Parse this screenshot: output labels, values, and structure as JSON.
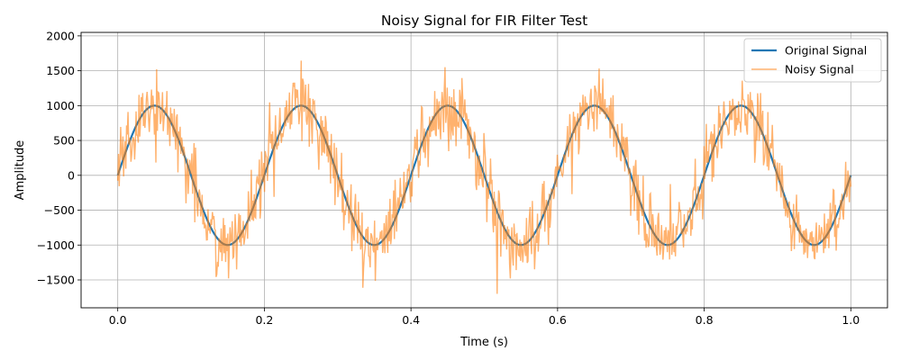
{
  "chart_data": {
    "type": "line",
    "title": "Noisy Signal for FIR Filter Test",
    "xlabel": "Time (s)",
    "ylabel": "Amplitude",
    "xlim": [
      -0.05,
      1.05
    ],
    "ylim": [
      -1900,
      2050
    ],
    "x_ticks": [
      0.0,
      0.2,
      0.4,
      0.6,
      0.8,
      1.0
    ],
    "x_tick_labels": [
      "0.0",
      "0.2",
      "0.4",
      "0.6",
      "0.8",
      "1.0"
    ],
    "y_ticks": [
      -1500,
      -1000,
      -500,
      0,
      500,
      1000,
      1500,
      2000
    ],
    "y_tick_labels": [
      "−1500",
      "−1000",
      "−500",
      "0",
      "500",
      "1000",
      "1500",
      "2000"
    ],
    "grid": true,
    "legend_position": "top-right",
    "series": [
      {
        "name": "Original Signal",
        "color": "#1f77b4",
        "function": "1000*sin(2*pi*5*t)",
        "x": [
          0.0,
          0.025,
          0.05,
          0.075,
          0.1,
          0.125,
          0.15,
          0.175,
          0.2,
          0.225,
          0.25,
          0.275,
          0.3,
          0.325,
          0.35,
          0.375,
          0.4,
          0.425,
          0.45,
          0.475,
          0.5,
          0.525,
          0.55,
          0.575,
          0.6,
          0.625,
          0.65,
          0.675,
          0.7,
          0.725,
          0.75,
          0.775,
          0.8,
          0.825,
          0.85,
          0.875,
          0.9,
          0.925,
          0.95,
          0.975,
          1.0
        ],
        "values": [
          0,
          707,
          1000,
          707,
          0,
          -707,
          -1000,
          -707,
          0,
          707,
          1000,
          707,
          0,
          -707,
          -1000,
          -707,
          0,
          707,
          1000,
          707,
          0,
          -707,
          -1000,
          -707,
          0,
          707,
          1000,
          707,
          0,
          -707,
          -1000,
          -707,
          0,
          707,
          1000,
          707,
          0,
          -707,
          -1000,
          -707,
          0
        ]
      },
      {
        "name": "Noisy Signal",
        "color": "#ff7f0e",
        "noise_sigma": 250,
        "x_start": 0.0,
        "x_end": 1.0,
        "sample_count": 1000,
        "noise_seed": 7
      }
    ]
  }
}
